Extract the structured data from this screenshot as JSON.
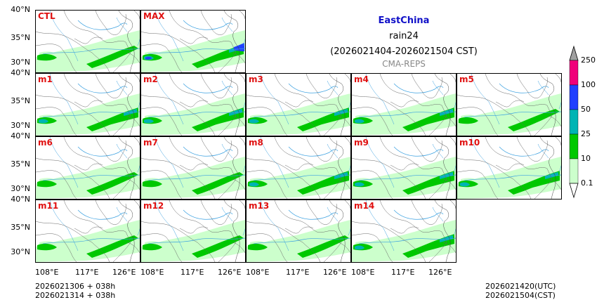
{
  "title": {
    "region": "EastChina",
    "variable": "rain24",
    "period": "(2026021404-2026021504 CST)",
    "model": "CMA-REPS"
  },
  "panels": [
    {
      "label": "CTL",
      "intensity": 1
    },
    {
      "label": "MAX",
      "intensity": 3
    },
    {
      "label": "m1",
      "intensity": 2
    },
    {
      "label": "m2",
      "intensity": 2
    },
    {
      "label": "m3",
      "intensity": 2
    },
    {
      "label": "m4",
      "intensity": 2
    },
    {
      "label": "m5",
      "intensity": 1
    },
    {
      "label": "m6",
      "intensity": 1
    },
    {
      "label": "m7",
      "intensity": 1
    },
    {
      "label": "m8",
      "intensity": 2
    },
    {
      "label": "m9",
      "intensity": 2
    },
    {
      "label": "m10",
      "intensity": 2
    },
    {
      "label": "m11",
      "intensity": 1
    },
    {
      "label": "m12",
      "intensity": 1
    },
    {
      "label": "m13",
      "intensity": 1
    },
    {
      "label": "m14",
      "intensity": 2
    }
  ],
  "lat_ticks": [
    "40°N",
    "35°N",
    "30°N"
  ],
  "lon_ticks": [
    "108°E",
    "117°E",
    "126°E"
  ],
  "colorbar": {
    "levels": [
      "0.1",
      "10",
      "25",
      "50",
      "100",
      "250"
    ],
    "colors": [
      "#ccffcc",
      "#00c800",
      "#00b4b4",
      "#2040ff",
      "#f0007a",
      "#a0a0a0"
    ]
  },
  "footer": {
    "init_utc": "2026021306  +  038h",
    "init_cst": "2026021314  +  038h",
    "valid_utc": "2026021420(UTC)",
    "valid_cst": "2026021504(CST)"
  }
}
